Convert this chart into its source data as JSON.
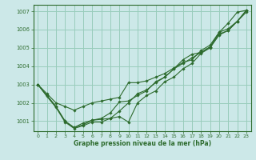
{
  "xlabel": "Graphe pression niveau de la mer (hPa)",
  "ylabel": "",
  "background_color": "#cce8e8",
  "grid_color": "#99ccbb",
  "line_color": "#2d6b2d",
  "xlim": [
    -0.5,
    23.5
  ],
  "ylim": [
    1000.45,
    1007.35
  ],
  "yticks": [
    1001,
    1002,
    1003,
    1004,
    1005,
    1006,
    1007
  ],
  "xticks": [
    0,
    1,
    2,
    3,
    4,
    5,
    6,
    7,
    8,
    9,
    10,
    11,
    12,
    13,
    14,
    15,
    16,
    17,
    18,
    19,
    20,
    21,
    22,
    23
  ],
  "series": [
    [
      1003.0,
      1002.5,
      1002.0,
      1001.8,
      1001.6,
      1001.8,
      1002.0,
      1002.1,
      1002.2,
      1002.3,
      1003.1,
      1003.1,
      1003.2,
      1003.4,
      1003.6,
      1003.9,
      1004.2,
      1004.35,
      1004.85,
      1005.15,
      1005.85,
      1006.05,
      1006.45,
      1006.95
    ],
    [
      1003.0,
      1002.4,
      1001.8,
      1001.0,
      1000.65,
      1000.8,
      1001.05,
      1001.1,
      1001.15,
      1001.55,
      1002.0,
      1002.5,
      1002.7,
      1003.1,
      1003.4,
      1003.85,
      1004.15,
      1004.45,
      1004.75,
      1005.05,
      1005.75,
      1005.95,
      1006.45,
      1007.05
    ],
    [
      1003.0,
      1002.4,
      1001.8,
      1001.0,
      1000.65,
      1000.9,
      1001.05,
      1001.15,
      1001.45,
      1002.05,
      1002.1,
      1002.4,
      1002.65,
      1003.15,
      1003.4,
      1003.85,
      1004.35,
      1004.65,
      1004.75,
      1005.05,
      1005.85,
      1006.35,
      1006.95,
      1007.05
    ],
    [
      1003.0,
      1002.35,
      1001.75,
      1000.95,
      1000.6,
      1000.75,
      1000.95,
      1000.95,
      1001.15,
      1001.25,
      1000.95,
      1002.0,
      1002.4,
      1002.65,
      1003.15,
      1003.4,
      1003.85,
      1004.15,
      1004.7,
      1005.0,
      1005.7,
      1005.95,
      1006.45,
      1007.05
    ]
  ]
}
